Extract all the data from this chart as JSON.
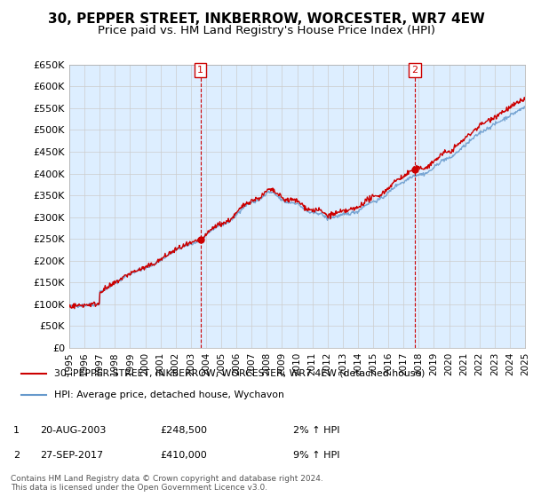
{
  "title": "30, PEPPER STREET, INKBERROW, WORCESTER, WR7 4EW",
  "subtitle": "Price paid vs. HM Land Registry's House Price Index (HPI)",
  "legend_line1": "30, PEPPER STREET, INKBERROW, WORCESTER, WR7 4EW (detached house)",
  "legend_line2": "HPI: Average price, detached house, Wychavon",
  "annotation1_date": "20-AUG-2003",
  "annotation1_price": "£248,500",
  "annotation1_change": "2% ↑ HPI",
  "annotation2_date": "27-SEP-2017",
  "annotation2_price": "£410,000",
  "annotation2_change": "9% ↑ HPI",
  "footer": "Contains HM Land Registry data © Crown copyright and database right 2024.\nThis data is licensed under the Open Government Licence v3.0.",
  "x_start_year": 1995,
  "x_end_year": 2025,
  "y_min": 0,
  "y_max": 650000,
  "y_ticks": [
    0,
    50000,
    100000,
    150000,
    200000,
    250000,
    300000,
    350000,
    400000,
    450000,
    500000,
    550000,
    600000,
    650000
  ],
  "sale1_year": 2003.639,
  "sale1_price": 248500,
  "sale2_year": 2017.74,
  "sale2_price": 410000,
  "line_color_red": "#cc0000",
  "line_color_blue": "#6699cc",
  "annotation_line_color": "#cc0000",
  "grid_color": "#cccccc",
  "plot_bg": "#ddeeff",
  "title_fontsize": 11,
  "subtitle_fontsize": 9.5
}
